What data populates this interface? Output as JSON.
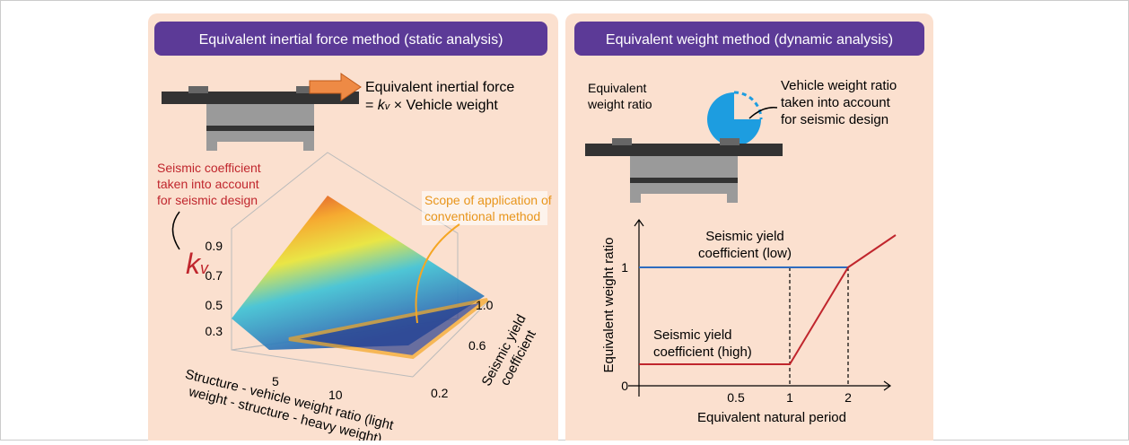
{
  "left": {
    "title": "Equivalent inertial force method (static analysis)",
    "force": {
      "line1": "Equivalent inertial force",
      "eq": "=",
      "k": "k",
      "sub": "v",
      "rest": "× Vehicle weight"
    },
    "coef": [
      "Seismic coefficient",
      "taken into account",
      "for seismic design"
    ],
    "zlabel": {
      "k": "k",
      "sub": "v"
    },
    "zticks": [
      "0.9",
      "0.7",
      "0.5",
      "0.3"
    ],
    "xticks": [
      "5",
      "10"
    ],
    "yticks": [
      "1.0",
      "0.6",
      "0.2"
    ],
    "ylabel": [
      "Seismic yield",
      "coefficient"
    ],
    "xlabel": [
      "Structure - vehicle weight ratio (light",
      "weight - structure - heavy weight)"
    ],
    "scope": [
      "Scope of application of",
      "conventional method"
    ]
  },
  "right": {
    "title": "Equivalent weight method (dynamic analysis)",
    "ratio": [
      "Equivalent",
      "weight ratio"
    ],
    "vehicle": [
      "Vehicle weight ratio",
      "taken into account",
      "for seismic design"
    ],
    "yticks": [
      "1",
      "0"
    ],
    "xticks": [
      "0.5",
      "1",
      "2"
    ],
    "low": [
      "Seismic yield",
      "coefficient (low)"
    ],
    "high": [
      "Seismic yield",
      "coefficient (high)"
    ],
    "ylabel": "Equivalent weight ratio",
    "xlabel": "Equivalent natural period"
  }
}
